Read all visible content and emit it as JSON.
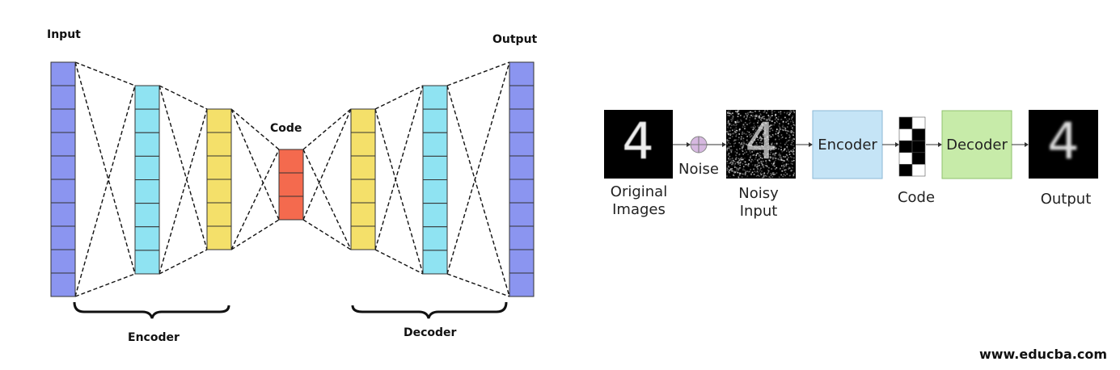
{
  "autoencoder": {
    "input_label": "Input",
    "output_label": "Output",
    "code_label": "Code",
    "encoder_label": "Encoder",
    "decoder_label": "Decoder",
    "colors": {
      "input": "#8b95f0",
      "encoder_hidden": "#8fe3f2",
      "bottleneck_side": "#f4e06a",
      "code": "#f46a4e",
      "border": "#333333"
    },
    "layers": [
      {
        "name": "input-layer",
        "cells": 10,
        "color": "input"
      },
      {
        "name": "encoder-layer-1",
        "cells": 8,
        "color": "encoder_hidden"
      },
      {
        "name": "encoder-layer-2",
        "cells": 6,
        "color": "bottleneck_side"
      },
      {
        "name": "code-layer",
        "cells": 3,
        "color": "code"
      },
      {
        "name": "decoder-layer-1",
        "cells": 6,
        "color": "bottleneck_side"
      },
      {
        "name": "decoder-layer-2",
        "cells": 8,
        "color": "encoder_hidden"
      },
      {
        "name": "output-layer",
        "cells": 10,
        "color": "input"
      }
    ]
  },
  "denoising": {
    "noise_label": "Noise",
    "original_label_1": "Original",
    "original_label_2": "Images",
    "noisy_label_1": "Noisy",
    "noisy_label_2": "Input",
    "encoder_box": "Encoder",
    "decoder_box": "Decoder",
    "code_label": "Code",
    "output_label": "Output",
    "digit": "4",
    "colors": {
      "encoder_box": "#c5e4f6",
      "decoder_box": "#c7eba9",
      "noise_symbol": "#d6b8e0"
    },
    "code_pattern": [
      1,
      0,
      0,
      1,
      1,
      1,
      0,
      1,
      1,
      0
    ]
  },
  "credit": "www.educba.com"
}
